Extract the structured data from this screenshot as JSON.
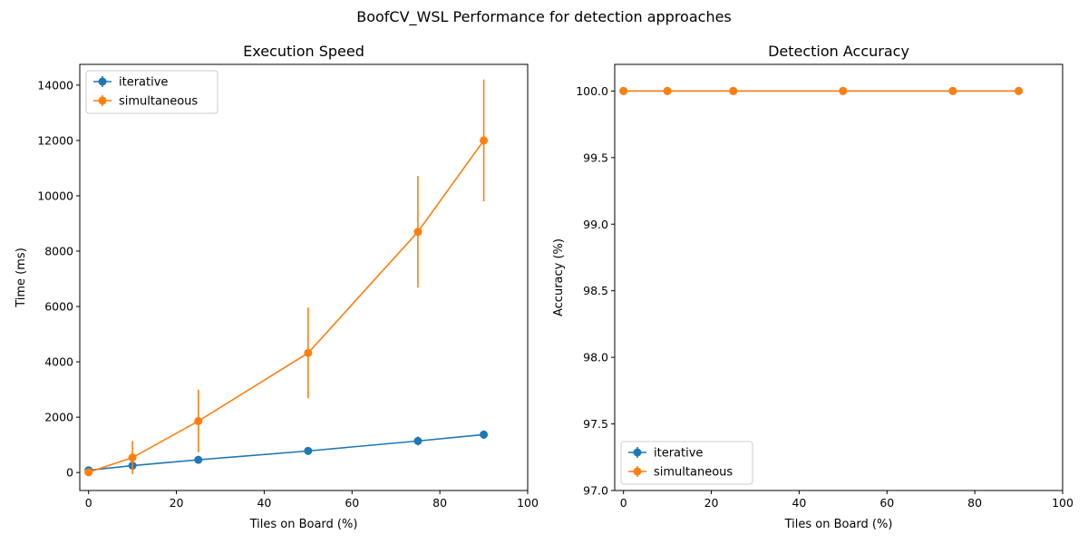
{
  "figure": {
    "suptitle": "BoofCV_WSL Performance for detection approaches"
  },
  "chart_data": [
    {
      "type": "line",
      "title": "Execution Speed",
      "xlabel": "Tiles on Board (%)",
      "ylabel": "Time (ms)",
      "xlim": [
        -2,
        100
      ],
      "ylim": [
        -650,
        14750
      ],
      "xticks": [
        0,
        20,
        40,
        60,
        80,
        100
      ],
      "yticks": [
        0,
        2000,
        4000,
        6000,
        8000,
        10000,
        12000,
        14000
      ],
      "grid": false,
      "legend_position": "upper-left",
      "x": [
        0,
        10,
        25,
        50,
        75,
        90
      ],
      "series": [
        {
          "name": "iterative",
          "color": "#1f77b4",
          "marker": "circle",
          "values": [
            80,
            250,
            460,
            780,
            1140,
            1370
          ],
          "error": [
            30,
            130,
            80,
            130,
            160,
            150
          ]
        },
        {
          "name": "simultaneous",
          "color": "#ff7f0e",
          "marker": "circle",
          "values": [
            10,
            540,
            1860,
            4320,
            8700,
            12000
          ],
          "error": [
            10,
            600,
            1130,
            1640,
            2020,
            2200
          ]
        }
      ]
    },
    {
      "type": "line",
      "title": "Detection Accuracy",
      "xlabel": "Tiles on Board (%)",
      "ylabel": "Accuracy (%)",
      "xlim": [
        -2,
        100
      ],
      "ylim": [
        97.0,
        100.2
      ],
      "xticks": [
        0,
        20,
        40,
        60,
        80,
        100
      ],
      "yticks": [
        97.0,
        97.5,
        98.0,
        98.5,
        99.0,
        99.5,
        100.0
      ],
      "grid": false,
      "legend_position": "lower-left",
      "x": [
        0,
        10,
        25,
        50,
        75,
        90
      ],
      "series": [
        {
          "name": "iterative",
          "color": "#1f77b4",
          "marker": "circle",
          "values": [
            100.0,
            100.0,
            100.0,
            100.0,
            100.0,
            100.0
          ],
          "error": [
            0,
            0,
            0,
            0,
            0,
            0
          ]
        },
        {
          "name": "simultaneous",
          "color": "#ff7f0e",
          "marker": "circle",
          "values": [
            100.0,
            100.0,
            100.0,
            100.0,
            100.0,
            100.0
          ],
          "error": [
            0,
            0,
            0,
            0,
            0,
            0
          ]
        }
      ]
    }
  ]
}
